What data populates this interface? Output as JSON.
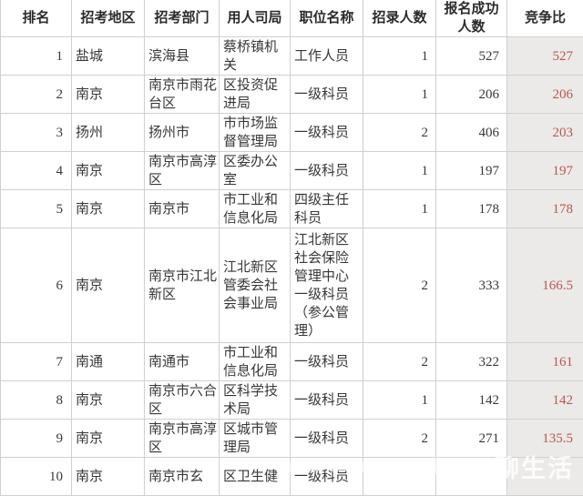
{
  "chart_data": {
    "type": "table",
    "title": "",
    "columns": [
      "排名",
      "招考地区",
      "招考部门",
      "用人司局",
      "职位名称",
      "招录人数",
      "报名成功人数",
      "竞争比"
    ],
    "rows": [
      [
        "1",
        "盐城",
        "滨海县",
        "蔡桥镇机关",
        "工作人员",
        "1",
        "527",
        "527"
      ],
      [
        "2",
        "南京",
        "南京市雨花台区",
        "区投资促进局",
        "一级科员",
        "1",
        "206",
        "206"
      ],
      [
        "3",
        "扬州",
        "扬州市",
        "市市场监督管理局",
        "一级科员",
        "2",
        "406",
        "203"
      ],
      [
        "4",
        "南京",
        "南京市高淳区",
        "区委办公室",
        "一级科员",
        "1",
        "197",
        "197"
      ],
      [
        "5",
        "南京",
        "南京市",
        "市工业和信息化局",
        "四级主任科员",
        "1",
        "178",
        "178"
      ],
      [
        "6",
        "南京",
        "南京市江北新区",
        "江北新区管委会社会事业局",
        "江北新区社会保险管理中心一级科员（参公管理）",
        "2",
        "333",
        "166.5"
      ],
      [
        "7",
        "南通",
        "南通市",
        "市工业和信息化局",
        "一级科员",
        "2",
        "322",
        "161"
      ],
      [
        "8",
        "南京",
        "南京市六合区",
        "区科学技术局",
        "一级科员",
        "1",
        "142",
        "142"
      ],
      [
        "9",
        "南京",
        "南京市高淳区",
        "区城市管理局",
        "一级科员",
        "2",
        "271",
        "135.5"
      ],
      [
        "10",
        "南京",
        "南京市玄",
        "区卫生健",
        "一级科员",
        "",
        "",
        ""
      ]
    ],
    "layout": {
      "ratio_column_highlighted": true,
      "grid": true
    }
  },
  "watermark": {
    "text": "聊生活"
  },
  "colors": {
    "ratio_text": "#b85752",
    "ratio_bg": "#eceae8",
    "grid_line": "#d2d0ce",
    "body_text": "#373737",
    "background": "#ffffff"
  }
}
